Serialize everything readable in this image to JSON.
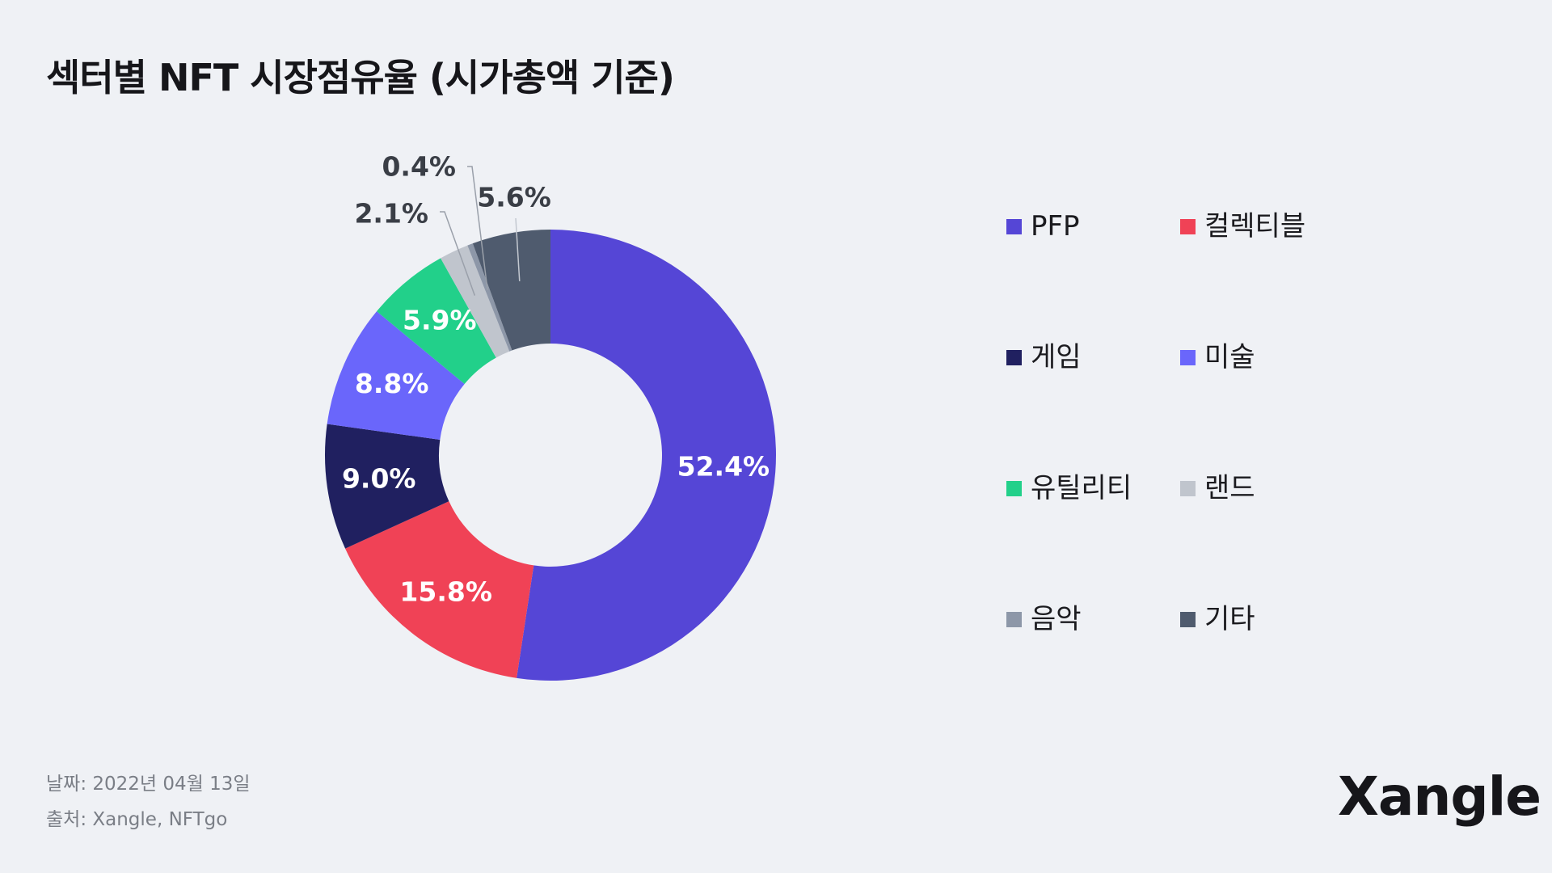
{
  "chart_data": {
    "type": "pie",
    "title": "섹터별 NFT 시장점유율 (시가총액 기준)",
    "categories": [
      "PFP",
      "컬렉티블",
      "게임",
      "미술",
      "유틸리티",
      "랜드",
      "음악",
      "기타"
    ],
    "values": [
      52.4,
      15.8,
      9.0,
      8.8,
      5.9,
      2.1,
      0.4,
      5.6
    ],
    "value_labels": [
      "52.4%",
      "15.8%",
      "9.0%",
      "8.8%",
      "5.9%",
      "2.1%",
      "0.4%",
      "5.6%"
    ],
    "colors": [
      "#5546d6",
      "#f04256",
      "#202060",
      "#6a66fb",
      "#22d08a",
      "#c0c5cd",
      "#8d97a8",
      "#4f5b6e"
    ],
    "legend_position": "right",
    "donut": true
  },
  "footer": {
    "date": "날짜: 2022년 04월 13일",
    "source": "출처: Xangle, NFTgo"
  },
  "logo": {
    "text": "Xangle"
  }
}
